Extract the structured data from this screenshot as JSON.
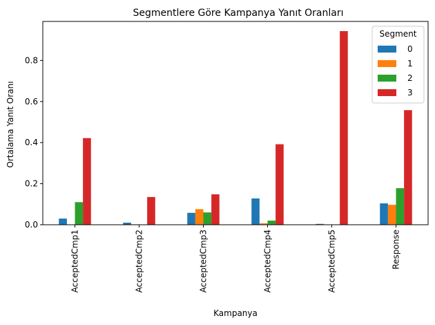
{
  "chart_data": {
    "type": "bar",
    "title": "Segmentlere Göre Kampanya Yanıt Oranları",
    "xlabel": "Kampanya",
    "ylabel": "Ortalama Yanıt Oranı",
    "categories": [
      "AcceptedCmp1",
      "AcceptedCmp2",
      "AcceptedCmp3",
      "AcceptedCmp4",
      "AcceptedCmp5",
      "Response"
    ],
    "series": [
      {
        "name": "0",
        "color": "#1f77b4",
        "values": [
          0.03,
          0.01,
          0.058,
          0.128,
          0.004,
          0.104
        ]
      },
      {
        "name": "1",
        "color": "#ff7f0e",
        "values": [
          0.0,
          0.002,
          0.076,
          0.007,
          0.0,
          0.097
        ]
      },
      {
        "name": "2",
        "color": "#2ca02c",
        "values": [
          0.11,
          0.0,
          0.06,
          0.02,
          0.0,
          0.178
        ]
      },
      {
        "name": "3",
        "color": "#d62728",
        "values": [
          0.422,
          0.135,
          0.148,
          0.392,
          0.943,
          0.558
        ]
      }
    ],
    "ylim": [
      0,
      0.99
    ],
    "yticks": [
      "0.0",
      "0.2",
      "0.4",
      "0.6",
      "0.8"
    ],
    "grid": false,
    "legend": {
      "title": "Segment",
      "placement": "top-right"
    }
  }
}
